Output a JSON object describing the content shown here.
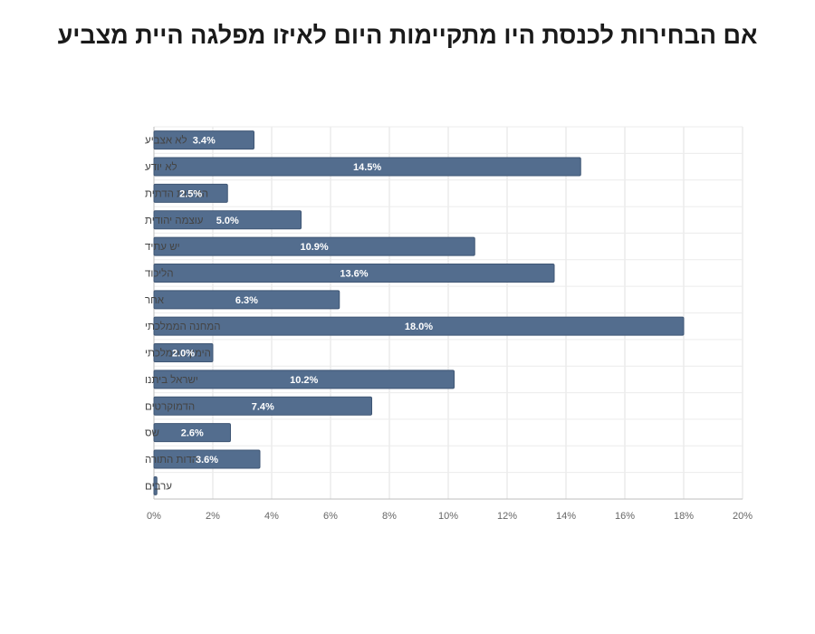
{
  "chart_data": {
    "type": "bar",
    "orientation": "horizontal",
    "title": "אם הבחירות לכנסת היו מתקיימות היום לאיזו מפלגה היית מצביע",
    "categories": [
      "לא אצביע",
      "לא יודע",
      "הציונות הדתית",
      "עוצמה יהודית",
      "יש עתיד",
      "הליכוד",
      "אחר",
      "המחנה הממלכתי",
      "הימין הממלכתי",
      "ישראל ביתנו",
      "הדמוקרטים",
      "שס",
      "יהדות התורה",
      "ערבים"
    ],
    "values": [
      3.4,
      14.5,
      2.5,
      5.0,
      10.9,
      13.6,
      6.3,
      18.0,
      2.0,
      10.2,
      7.4,
      2.6,
      3.6,
      0.1
    ],
    "data_labels": [
      "3.4%",
      "14.5%",
      "2.5%",
      "5.0%",
      "10.9%",
      "13.6%",
      "6.3%",
      "18.0%",
      "2.0%",
      "10.2%",
      "7.4%",
      "2.6%",
      "3.6%",
      ""
    ],
    "xlim": [
      0,
      20
    ],
    "x_ticks": [
      "0%",
      "2%",
      "4%",
      "6%",
      "8%",
      "10%",
      "12%",
      "14%",
      "16%",
      "18%",
      "20%"
    ],
    "xlabel": "",
    "ylabel": "",
    "grid": true,
    "bar_color": "#536d8e"
  }
}
